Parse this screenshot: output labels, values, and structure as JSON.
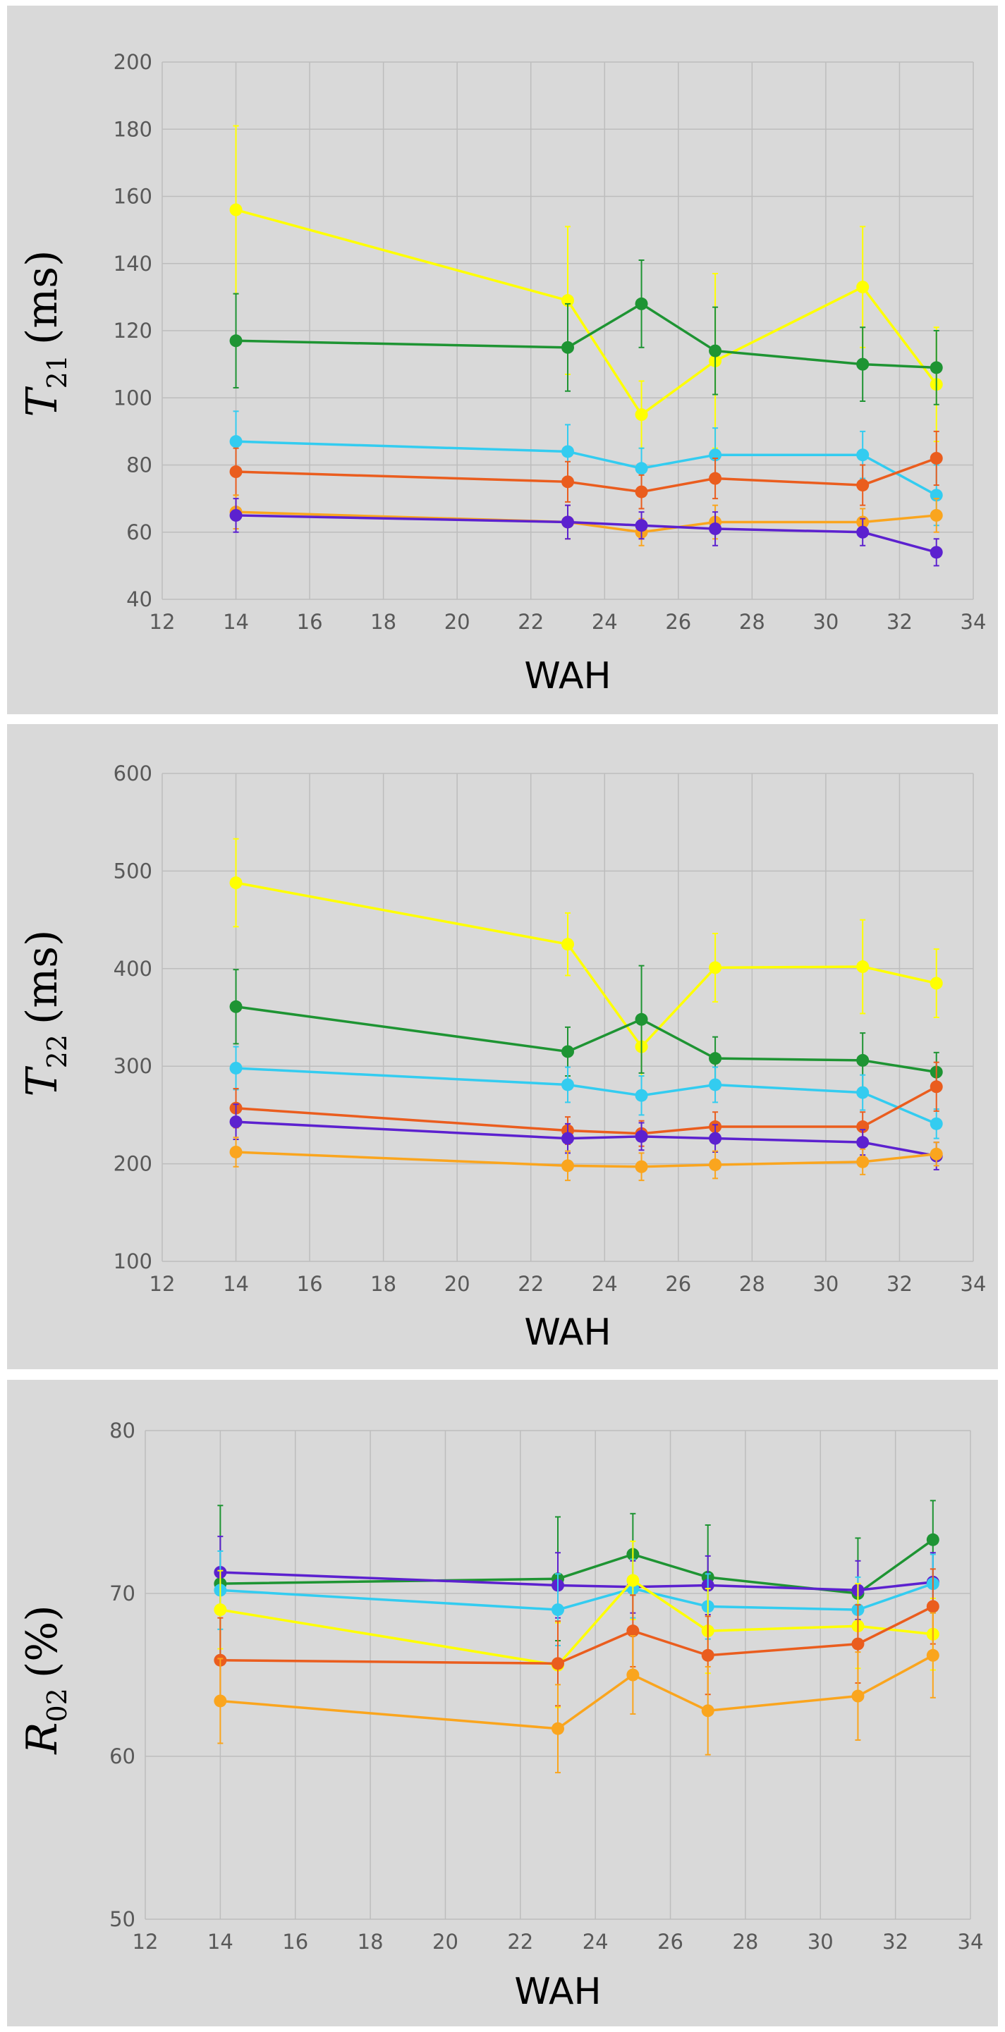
{
  "chart_data": [
    {
      "type": "line",
      "ylabel_symbol": "T",
      "ylabel_sub": "21",
      "ylabel_unit": "(ms)",
      "xlabel": "WAH",
      "xlim": [
        12,
        34
      ],
      "ylim": [
        40,
        200
      ],
      "xticks": [
        12,
        14,
        16,
        18,
        20,
        22,
        24,
        26,
        28,
        30,
        32,
        34
      ],
      "yticks": [
        40,
        60,
        80,
        100,
        120,
        140,
        160,
        180,
        200
      ],
      "x": [
        14,
        23,
        25,
        27,
        31,
        33
      ],
      "series": [
        {
          "name": "yellow",
          "color": "#ffff00",
          "values": [
            156,
            129,
            95,
            111,
            133,
            104
          ],
          "err": [
            25,
            22,
            10,
            26,
            18,
            17
          ]
        },
        {
          "name": "green",
          "color": "#1e9433",
          "values": [
            117,
            115,
            128,
            114,
            110,
            109
          ],
          "err": [
            14,
            13,
            13,
            13,
            11,
            11
          ]
        },
        {
          "name": "light-blue",
          "color": "#33ccf0",
          "values": [
            87,
            84,
            79,
            83,
            83,
            71
          ],
          "err": [
            9,
            8,
            6,
            8,
            7,
            9
          ]
        },
        {
          "name": "red-orange",
          "color": "#ea5d1e",
          "values": [
            78,
            75,
            72,
            76,
            74,
            82
          ],
          "err": [
            7,
            6,
            5,
            6,
            6,
            8
          ]
        },
        {
          "name": "orange",
          "color": "#faa51e",
          "values": [
            66,
            63,
            60,
            63,
            63,
            65
          ],
          "err": [
            5,
            5,
            4,
            5,
            4,
            5
          ]
        },
        {
          "name": "purple",
          "color": "#5c21cf",
          "values": [
            65,
            63,
            62,
            61,
            60,
            54
          ],
          "err": [
            5,
            5,
            4,
            5,
            4,
            4
          ]
        }
      ]
    },
    {
      "type": "line",
      "ylabel_symbol": "T",
      "ylabel_sub": "22",
      "ylabel_unit": "(ms)",
      "xlabel": "WAH",
      "xlim": [
        12,
        34
      ],
      "ylim": [
        100,
        600
      ],
      "xticks": [
        12,
        14,
        16,
        18,
        20,
        22,
        24,
        26,
        28,
        30,
        32,
        34
      ],
      "yticks": [
        100,
        200,
        300,
        400,
        500,
        600
      ],
      "x": [
        14,
        23,
        25,
        27,
        31,
        33
      ],
      "series": [
        {
          "name": "yellow",
          "color": "#ffff00",
          "values": [
            488,
            425,
            320,
            401,
            402,
            385
          ],
          "err": [
            45,
            32,
            30,
            35,
            48,
            35
          ]
        },
        {
          "name": "green",
          "color": "#1e9433",
          "values": [
            361,
            315,
            348,
            308,
            306,
            294
          ],
          "err": [
            38,
            25,
            55,
            22,
            28,
            20
          ]
        },
        {
          "name": "light-blue",
          "color": "#33ccf0",
          "values": [
            298,
            281,
            270,
            281,
            273,
            241
          ],
          "err": [
            22,
            18,
            20,
            18,
            18,
            15
          ]
        },
        {
          "name": "red-orange",
          "color": "#ea5d1e",
          "values": [
            257,
            234,
            231,
            238,
            238,
            279
          ],
          "err": [
            20,
            14,
            13,
            15,
            15,
            25
          ]
        },
        {
          "name": "purple",
          "color": "#5c21cf",
          "values": [
            243,
            226,
            228,
            226,
            222,
            208
          ],
          "err": [
            18,
            15,
            14,
            14,
            13,
            14
          ]
        },
        {
          "name": "orange",
          "color": "#faa51e",
          "values": [
            212,
            198,
            197,
            199,
            202,
            210
          ],
          "err": [
            15,
            15,
            14,
            14,
            13,
            12
          ]
        }
      ]
    },
    {
      "type": "line",
      "ylabel_symbol": "R",
      "ylabel_sub": "02",
      "ylabel_unit": "(%)",
      "xlabel": "WAH",
      "xlim": [
        12,
        34
      ],
      "ylim": [
        50,
        80
      ],
      "xticks": [
        12,
        14,
        16,
        18,
        20,
        22,
        24,
        26,
        28,
        30,
        32,
        34
      ],
      "yticks": [
        50,
        60,
        70,
        80
      ],
      "x": [
        14,
        23,
        25,
        27,
        31,
        33
      ],
      "series": [
        {
          "name": "green",
          "color": "#1e9433",
          "values": [
            70.6,
            70.9,
            72.4,
            71.0,
            70.0,
            73.3
          ],
          "err": [
            4.8,
            3.8,
            2.5,
            3.2,
            3.4,
            2.4
          ]
        },
        {
          "name": "purple",
          "color": "#5c21cf",
          "values": [
            71.3,
            70.5,
            70.4,
            70.5,
            70.2,
            70.7
          ],
          "err": [
            2.2,
            2.0,
            1.6,
            1.8,
            1.8,
            1.8
          ]
        },
        {
          "name": "light-blue",
          "color": "#33ccf0",
          "values": [
            70.2,
            69.0,
            70.3,
            69.2,
            69.0,
            70.6
          ],
          "err": [
            2.4,
            2.2,
            1.8,
            2.0,
            2.0,
            1.8
          ]
        },
        {
          "name": "yellow",
          "color": "#ffff00",
          "values": [
            69.0,
            65.6,
            70.8,
            67.7,
            68.0,
            67.5
          ],
          "err": [
            2.4,
            2.6,
            2.4,
            2.6,
            2.6,
            2.2
          ]
        },
        {
          "name": "red-orange",
          "color": "#ea5d1e",
          "values": [
            65.9,
            65.7,
            67.7,
            66.2,
            66.9,
            69.2
          ],
          "err": [
            2.6,
            2.6,
            2.2,
            2.4,
            2.4,
            2.3
          ]
        },
        {
          "name": "orange",
          "color": "#faa51e",
          "values": [
            63.4,
            61.7,
            65.0,
            62.8,
            63.7,
            66.2
          ],
          "err": [
            2.6,
            2.7,
            2.4,
            2.7,
            2.7,
            2.6
          ]
        }
      ]
    }
  ]
}
